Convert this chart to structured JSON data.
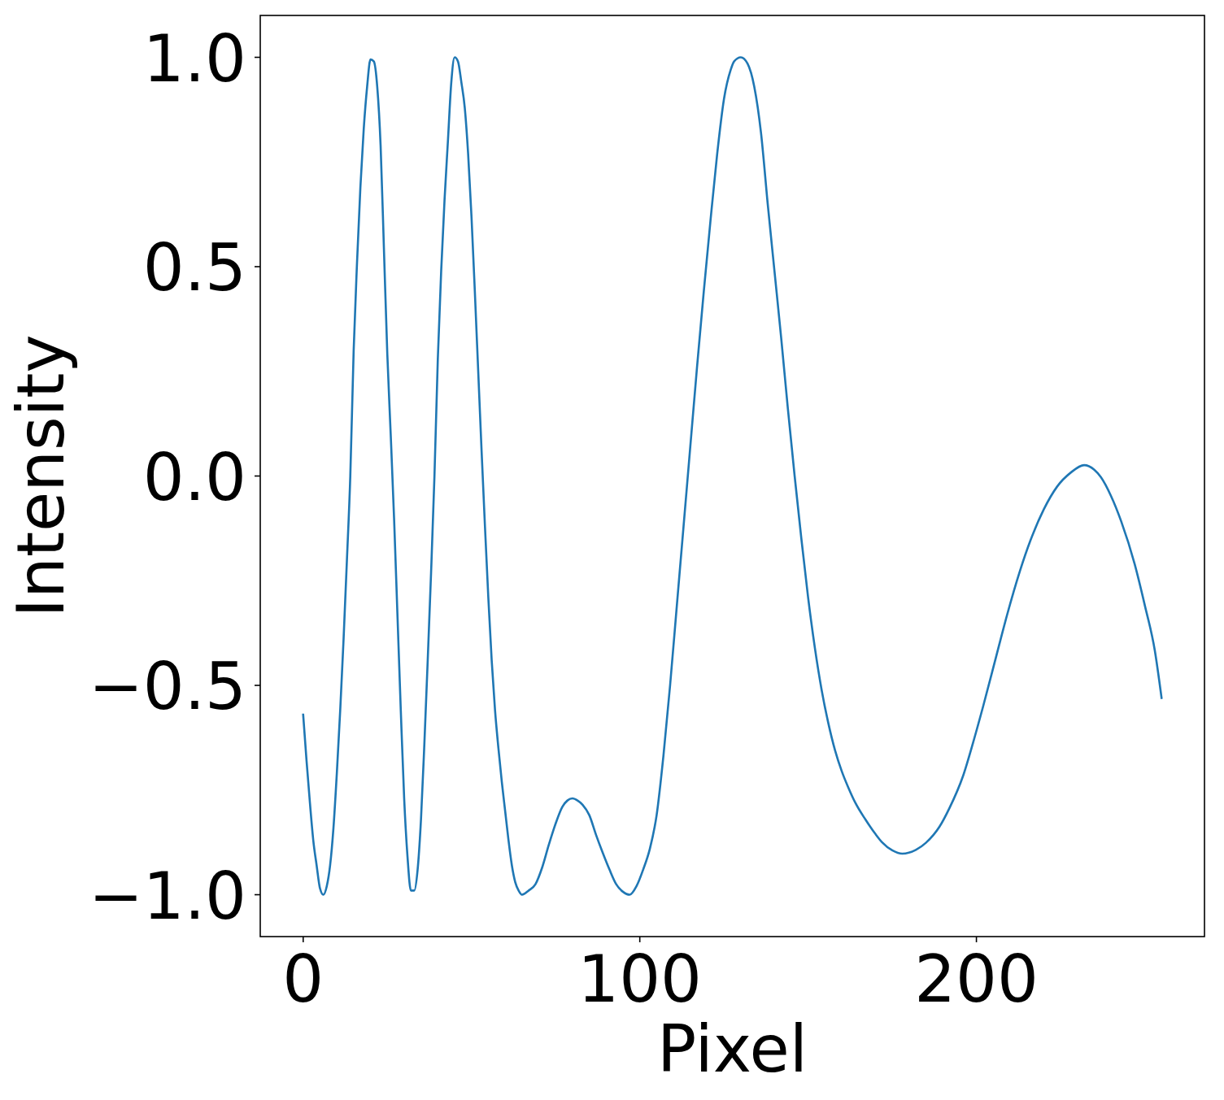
{
  "chart_data": {
    "type": "line",
    "xlabel": "Pixel",
    "ylabel": "Intensity",
    "x": [
      0,
      1,
      2,
      3,
      4,
      5,
      6,
      7,
      8,
      9,
      10,
      11,
      12,
      13,
      14,
      15,
      16,
      17,
      18,
      19,
      20,
      21,
      22,
      23,
      24,
      25,
      26,
      27,
      28,
      29,
      30,
      31,
      32,
      33,
      34,
      35,
      36,
      37,
      38,
      39,
      40,
      41,
      42,
      43,
      44,
      45,
      46,
      47,
      48,
      49,
      50,
      51,
      52,
      53,
      54,
      55,
      56,
      57,
      58,
      59,
      60,
      61,
      62,
      63,
      64,
      65,
      67,
      69,
      71,
      73,
      75,
      77,
      78.5,
      80,
      81.5,
      83,
      85,
      87,
      89,
      91,
      93,
      95,
      97,
      99,
      101,
      103,
      105,
      107,
      109,
      111,
      113,
      115,
      117,
      119,
      121,
      123,
      125,
      127,
      128,
      130,
      132,
      134,
      136,
      138,
      140,
      142,
      144,
      146,
      148,
      150,
      152,
      154,
      156,
      158,
      160,
      162,
      164,
      167,
      170,
      172,
      175,
      178,
      182,
      185,
      189,
      192,
      196,
      199,
      202,
      206,
      209,
      213,
      216,
      220,
      224,
      228,
      232,
      235,
      237,
      240,
      243,
      247,
      250,
      253,
      255
    ],
    "series": [
      {
        "color": "#1f77b4",
        "values": [
          -0.57,
          -0.68,
          -0.78,
          -0.87,
          -0.93,
          -0.985,
          -1.0,
          -0.98,
          -0.93,
          -0.84,
          -0.71,
          -0.56,
          -0.39,
          -0.2,
          0.0,
          0.3,
          0.51,
          0.69,
          0.83,
          0.93,
          0.995,
          0.99,
          0.93,
          0.79,
          0.54,
          0.29,
          0.1,
          -0.1,
          -0.33,
          -0.56,
          -0.77,
          -0.91,
          -0.99,
          -0.99,
          -0.94,
          -0.82,
          -0.64,
          -0.44,
          -0.23,
          0.0,
          0.28,
          0.49,
          0.66,
          0.8,
          0.94,
          1.0,
          0.99,
          0.94,
          0.88,
          0.77,
          0.62,
          0.44,
          0.25,
          0.06,
          -0.12,
          -0.29,
          -0.44,
          -0.56,
          -0.65,
          -0.73,
          -0.8,
          -0.87,
          -0.93,
          -0.97,
          -0.99,
          -1.0,
          -0.99,
          -0.975,
          -0.935,
          -0.88,
          -0.83,
          -0.79,
          -0.775,
          -0.77,
          -0.775,
          -0.785,
          -0.81,
          -0.857,
          -0.9,
          -0.94,
          -0.975,
          -0.993,
          -1.0,
          -0.98,
          -0.94,
          -0.89,
          -0.81,
          -0.67,
          -0.5,
          -0.31,
          -0.12,
          0.07,
          0.26,
          0.44,
          0.61,
          0.77,
          0.9,
          0.97,
          0.99,
          1.0,
          0.985,
          0.93,
          0.82,
          0.65,
          0.49,
          0.33,
          0.16,
          0.0,
          -0.15,
          -0.29,
          -0.41,
          -0.51,
          -0.59,
          -0.655,
          -0.705,
          -0.745,
          -0.78,
          -0.82,
          -0.855,
          -0.875,
          -0.894,
          -0.902,
          -0.893,
          -0.876,
          -0.838,
          -0.793,
          -0.717,
          -0.637,
          -0.55,
          -0.427,
          -0.335,
          -0.225,
          -0.155,
          -0.08,
          -0.025,
          0.008,
          0.026,
          0.015,
          -0.003,
          -0.048,
          -0.108,
          -0.21,
          -0.308,
          -0.417,
          -0.53
        ]
      }
    ],
    "xlim": [
      -12.75,
      267.75
    ],
    "ylim": [
      -1.1,
      1.1
    ],
    "xticks": [
      0,
      100,
      200
    ],
    "yticks": [
      {
        "value": -1.0,
        "label": "−1.0"
      },
      {
        "value": -0.5,
        "label": "−0.5"
      },
      {
        "value": 0.0,
        "label": "0.0"
      },
      {
        "value": 0.5,
        "label": "0.5"
      },
      {
        "value": 1.0,
        "label": "1.0"
      }
    ]
  }
}
